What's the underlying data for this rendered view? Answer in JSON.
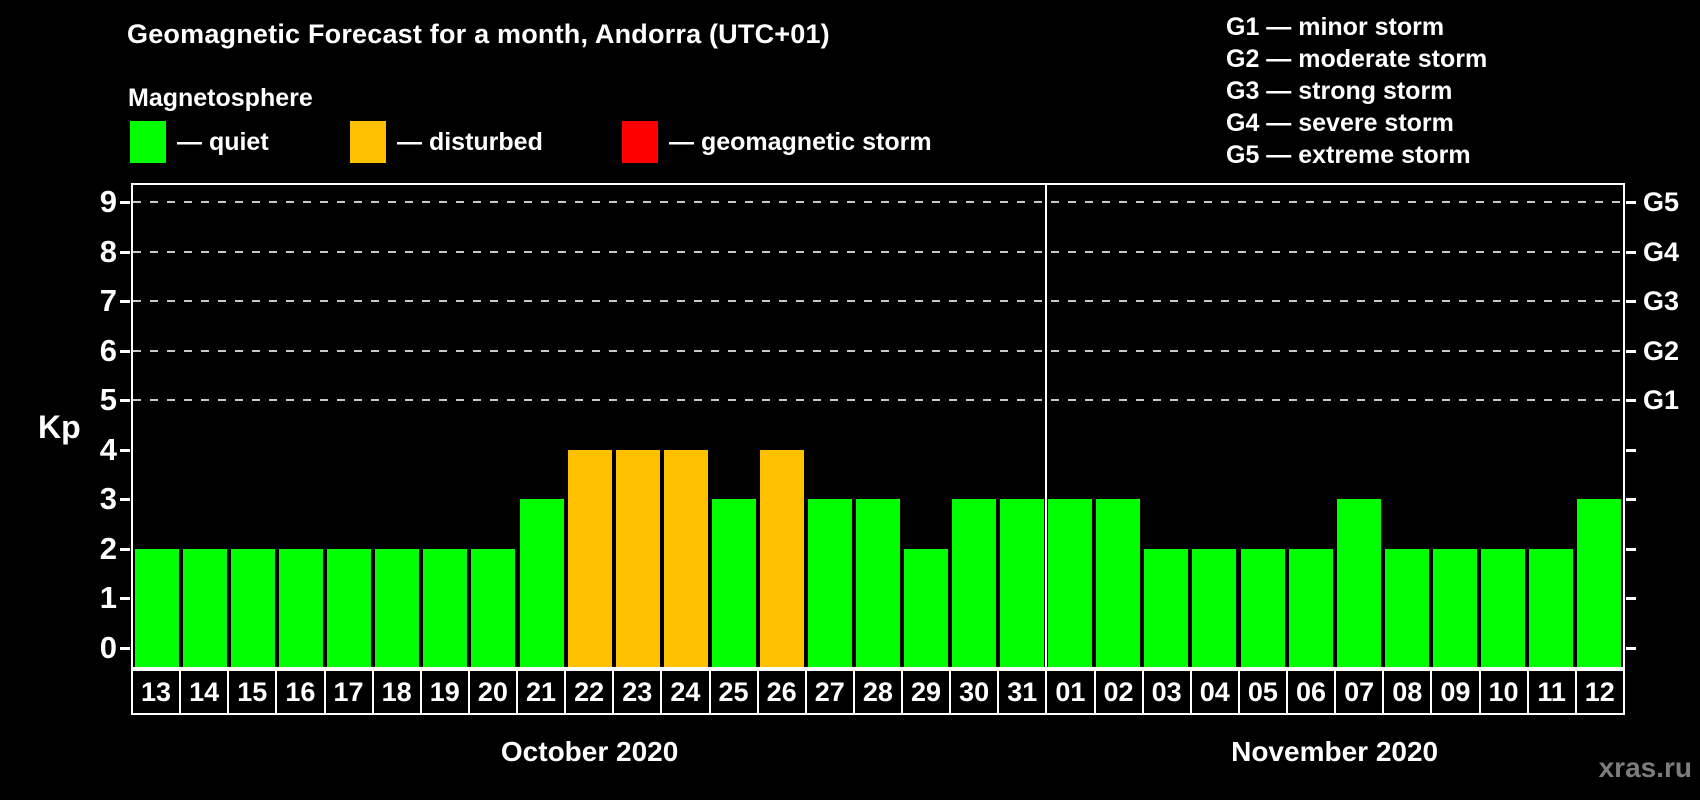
{
  "header": {
    "title": "Geomagnetic Forecast for a month, Andorra (UTC+01)",
    "subtitle": "Magnetosphere"
  },
  "legend": {
    "dash": "—",
    "items": [
      {
        "key": "quiet",
        "label": "quiet",
        "color": "#00ff00"
      },
      {
        "key": "disturbed",
        "label": "disturbed",
        "color": "#ffc000"
      },
      {
        "key": "storm",
        "label": "geomagnetic storm",
        "color": "#ff0000"
      }
    ]
  },
  "storm_scale": {
    "dash": "—",
    "items": [
      {
        "code": "G1",
        "label": "minor storm"
      },
      {
        "code": "G2",
        "label": "moderate storm"
      },
      {
        "code": "G3",
        "label": "strong storm"
      },
      {
        "code": "G4",
        "label": "severe storm"
      },
      {
        "code": "G5",
        "label": "extreme storm"
      }
    ]
  },
  "watermark": "xras.ru",
  "chart_data": {
    "type": "bar",
    "title": "Geomagnetic Forecast for a month, Andorra (UTC+01)",
    "ylabel": "Kp",
    "ylim": [
      0,
      9
    ],
    "yticks": [
      0,
      1,
      2,
      3,
      4,
      5,
      6,
      7,
      8,
      9
    ],
    "grid_levels": [
      5,
      6,
      7,
      8,
      9
    ],
    "grid": "dashed-storm-levels-only",
    "legend_position": "top-left",
    "right_axis": [
      {
        "kp": 5,
        "label": "G1"
      },
      {
        "kp": 6,
        "label": "G2"
      },
      {
        "kp": 7,
        "label": "G3"
      },
      {
        "kp": 8,
        "label": "G4"
      },
      {
        "kp": 9,
        "label": "G5"
      }
    ],
    "colors": {
      "quiet": "#00ff00",
      "disturbed": "#ffc000",
      "storm": "#ff0000"
    },
    "months": [
      {
        "label": "October 2020",
        "days": [
          {
            "day": "13",
            "kp": 2,
            "status": "quiet"
          },
          {
            "day": "14",
            "kp": 2,
            "status": "quiet"
          },
          {
            "day": "15",
            "kp": 2,
            "status": "quiet"
          },
          {
            "day": "16",
            "kp": 2,
            "status": "quiet"
          },
          {
            "day": "17",
            "kp": 2,
            "status": "quiet"
          },
          {
            "day": "18",
            "kp": 2,
            "status": "quiet"
          },
          {
            "day": "19",
            "kp": 2,
            "status": "quiet"
          },
          {
            "day": "20",
            "kp": 2,
            "status": "quiet"
          },
          {
            "day": "21",
            "kp": 3,
            "status": "quiet"
          },
          {
            "day": "22",
            "kp": 4,
            "status": "disturbed"
          },
          {
            "day": "23",
            "kp": 4,
            "status": "disturbed"
          },
          {
            "day": "24",
            "kp": 4,
            "status": "disturbed"
          },
          {
            "day": "25",
            "kp": 3,
            "status": "quiet"
          },
          {
            "day": "26",
            "kp": 4,
            "status": "disturbed"
          },
          {
            "day": "27",
            "kp": 3,
            "status": "quiet"
          },
          {
            "day": "28",
            "kp": 3,
            "status": "quiet"
          },
          {
            "day": "29",
            "kp": 2,
            "status": "quiet"
          },
          {
            "day": "30",
            "kp": 3,
            "status": "quiet"
          },
          {
            "day": "31",
            "kp": 3,
            "status": "quiet"
          }
        ]
      },
      {
        "label": "November 2020",
        "days": [
          {
            "day": "01",
            "kp": 3,
            "status": "quiet"
          },
          {
            "day": "02",
            "kp": 3,
            "status": "quiet"
          },
          {
            "day": "03",
            "kp": 2,
            "status": "quiet"
          },
          {
            "day": "04",
            "kp": 2,
            "status": "quiet"
          },
          {
            "day": "05",
            "kp": 2,
            "status": "quiet"
          },
          {
            "day": "06",
            "kp": 2,
            "status": "quiet"
          },
          {
            "day": "07",
            "kp": 3,
            "status": "quiet"
          },
          {
            "day": "08",
            "kp": 2,
            "status": "quiet"
          },
          {
            "day": "09",
            "kp": 2,
            "status": "quiet"
          },
          {
            "day": "10",
            "kp": 2,
            "status": "quiet"
          },
          {
            "day": "11",
            "kp": 2,
            "status": "quiet"
          },
          {
            "day": "12",
            "kp": 3,
            "status": "quiet"
          }
        ]
      }
    ]
  }
}
